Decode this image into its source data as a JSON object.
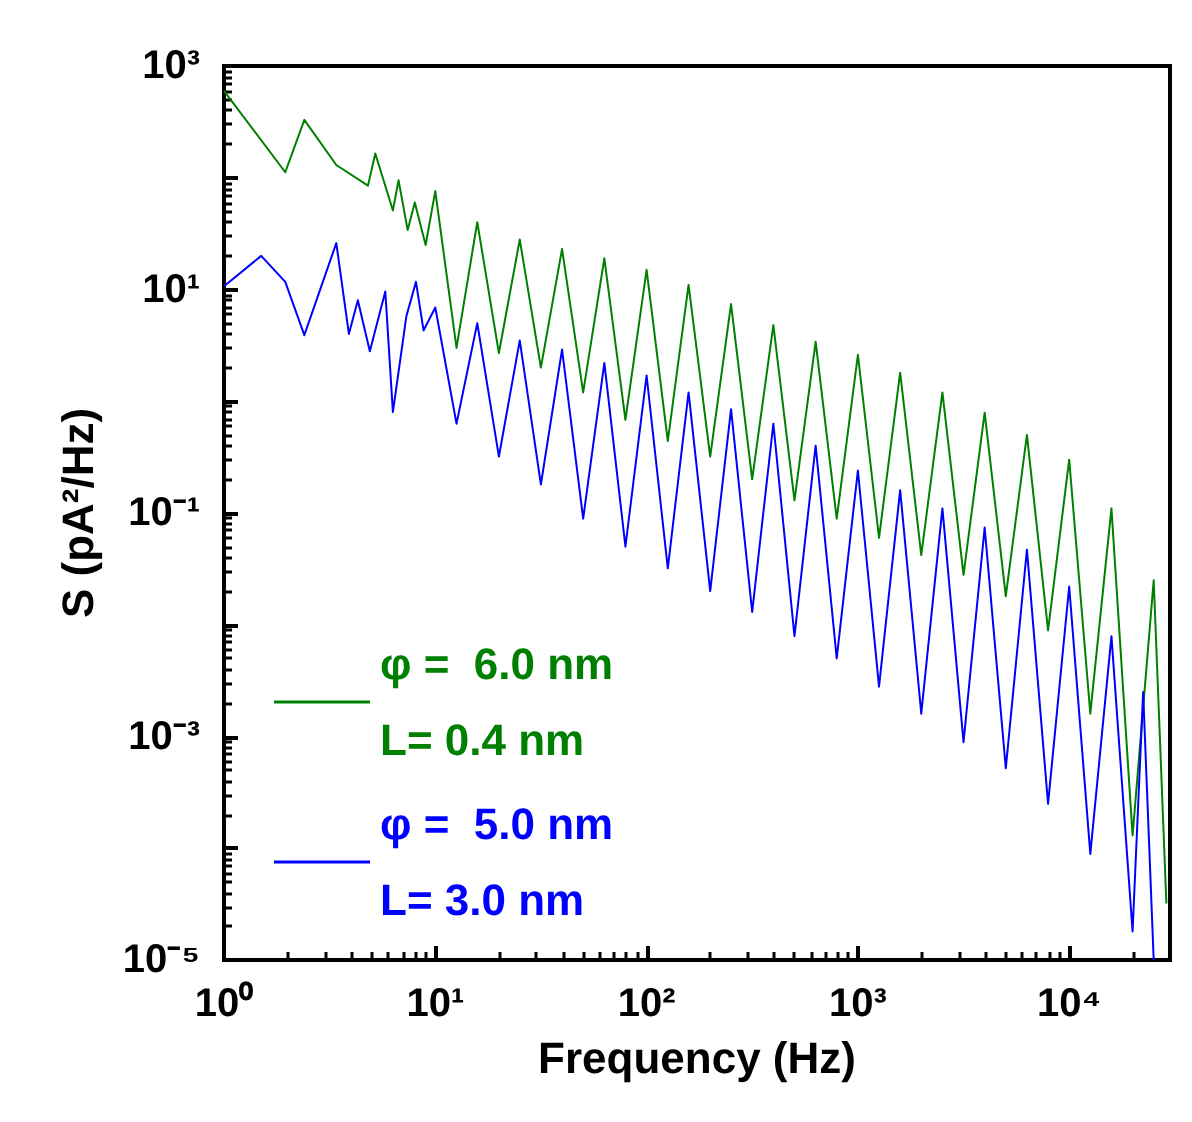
{
  "chart_data": {
    "type": "line",
    "xlabel": "Frequency (Hz)",
    "ylabel": "S (pA²/Hz)",
    "log": "xy",
    "grid": false,
    "legend": "bottom left",
    "marker": "none",
    "line_style": "solid",
    "xlim": [
      1,
      30000
    ],
    "xticks": [
      {
        "value": 1,
        "label": "10⁰"
      },
      {
        "value": 10,
        "label": "10¹"
      },
      {
        "value": 100,
        "label": "10²"
      },
      {
        "value": 1000,
        "label": "10³"
      },
      {
        "value": 10000,
        "label": "10⁴"
      }
    ],
    "ylim": [
      1e-05,
      1000
    ],
    "yticks": [
      {
        "value": 1e-05,
        "label": "10⁻⁵"
      },
      {
        "value": 0.0001,
        "label": null
      },
      {
        "value": 0.001,
        "label": "10⁻³"
      },
      {
        "value": 0.01,
        "label": null
      },
      {
        "value": 0.1,
        "label": "10⁻¹"
      },
      {
        "value": 1,
        "label": null
      },
      {
        "value": 10,
        "label": "10¹"
      },
      {
        "value": 100,
        "label": null
      },
      {
        "value": 1000,
        "label": "10³"
      }
    ],
    "series": [
      {
        "name": "φ =  6.0 nm\nL= 0.4 nm",
        "color": "#008000",
        "x": [
          1,
          1.95,
          2.4,
          3.4,
          4.8,
          5.2,
          6.3,
          6.7,
          7.4,
          8,
          9,
          10,
          12.6,
          15.8,
          20,
          25.1,
          31.6,
          39.8,
          50.1,
          63.1,
          79.4,
          100,
          126,
          158,
          200,
          251,
          316,
          398,
          501,
          631,
          794,
          1000,
          1259,
          1585,
          1995,
          2512,
          3162,
          3981,
          5012,
          6310,
          7943,
          10000,
          12589,
          15849,
          19953,
          25119,
          28840
        ],
        "values": [
          600,
          112,
          330,
          130,
          85,
          165,
          51,
          95,
          34,
          60,
          25,
          76,
          3.0,
          40,
          2.7,
          28,
          2.0,
          23,
          1.2,
          19,
          0.68,
          15,
          0.44,
          11,
          0.32,
          7.4,
          0.2,
          4.8,
          0.13,
          3.4,
          0.089,
          2.6,
          0.06,
          1.8,
          0.042,
          1.2,
          0.028,
          0.79,
          0.018,
          0.5,
          0.0089,
          0.3,
          0.0016,
          0.11,
          0.00013,
          0.025,
          3.2e-05
        ]
      },
      {
        "name": "φ =  5.0 nm\nL= 3.0 nm",
        "color": "#0000ff",
        "x": [
          1,
          1.5,
          1.95,
          2.4,
          3.4,
          3.9,
          4.3,
          4.9,
          5.8,
          6.3,
          7.3,
          8.1,
          8.8,
          10,
          12.6,
          15.8,
          20,
          25.1,
          31.6,
          39.8,
          50.1,
          63.1,
          79.4,
          100,
          126,
          158,
          200,
          251,
          316,
          398,
          501,
          631,
          794,
          1000,
          1259,
          1585,
          1995,
          2512,
          3162,
          3981,
          5012,
          6310,
          7943,
          10000,
          12589,
          15849,
          19953,
          22387,
          25119
        ],
        "values": [
          10.7,
          20,
          11.7,
          3.9,
          26,
          4,
          8,
          2.8,
          9.6,
          0.8,
          5.8,
          11.7,
          4.3,
          6.9,
          0.63,
          5.0,
          0.32,
          3.5,
          0.18,
          2.9,
          0.089,
          2.2,
          0.05,
          1.7,
          0.032,
          1.2,
          0.02,
          0.85,
          0.013,
          0.63,
          0.0079,
          0.4,
          0.005,
          0.24,
          0.0028,
          0.16,
          0.0016,
          0.11,
          0.00089,
          0.074,
          0.00052,
          0.047,
          0.00025,
          0.022,
          8.9e-05,
          0.0079,
          1.8e-05,
          0.0025,
          1e-05
        ]
      }
    ]
  }
}
